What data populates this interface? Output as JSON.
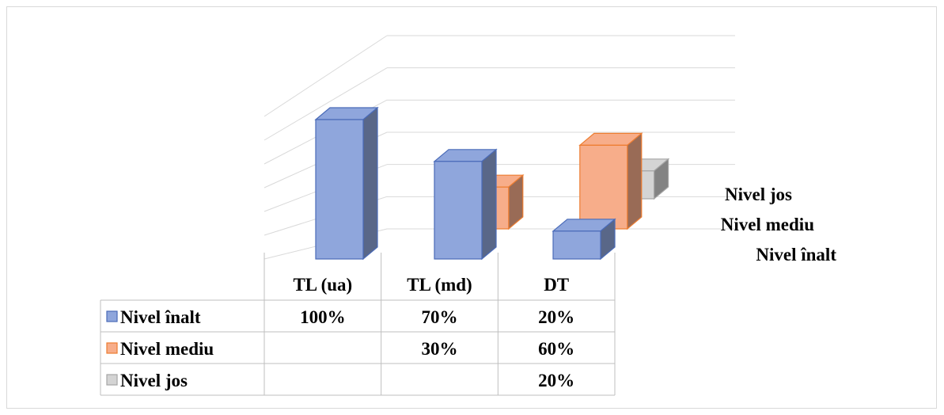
{
  "chart_data": {
    "type": "bar",
    "subtype": "3d-column",
    "categories": [
      "TL (ua)",
      "TL (md)",
      "DT"
    ],
    "series": [
      {
        "name": "Nivel înalt",
        "values": [
          100,
          70,
          20
        ],
        "labels": [
          "100%",
          "70%",
          "20%"
        ],
        "color": "#8fa6dc",
        "edge": "#4a6bb8"
      },
      {
        "name": "Nivel mediu",
        "values": [
          null,
          30,
          60
        ],
        "labels": [
          "",
          "30%",
          "60%"
        ],
        "color": "#f7ad8a",
        "edge": "#ed7d31"
      },
      {
        "name": "Nivel jos",
        "values": [
          null,
          null,
          20
        ],
        "labels": [
          "",
          "",
          "20%"
        ],
        "color": "#d4d4d4",
        "edge": "#a5a5a5"
      }
    ],
    "ylim": [
      0,
      120
    ],
    "grid": true,
    "legend": "data-table",
    "title": "",
    "xlabel": "",
    "ylabel": ""
  }
}
